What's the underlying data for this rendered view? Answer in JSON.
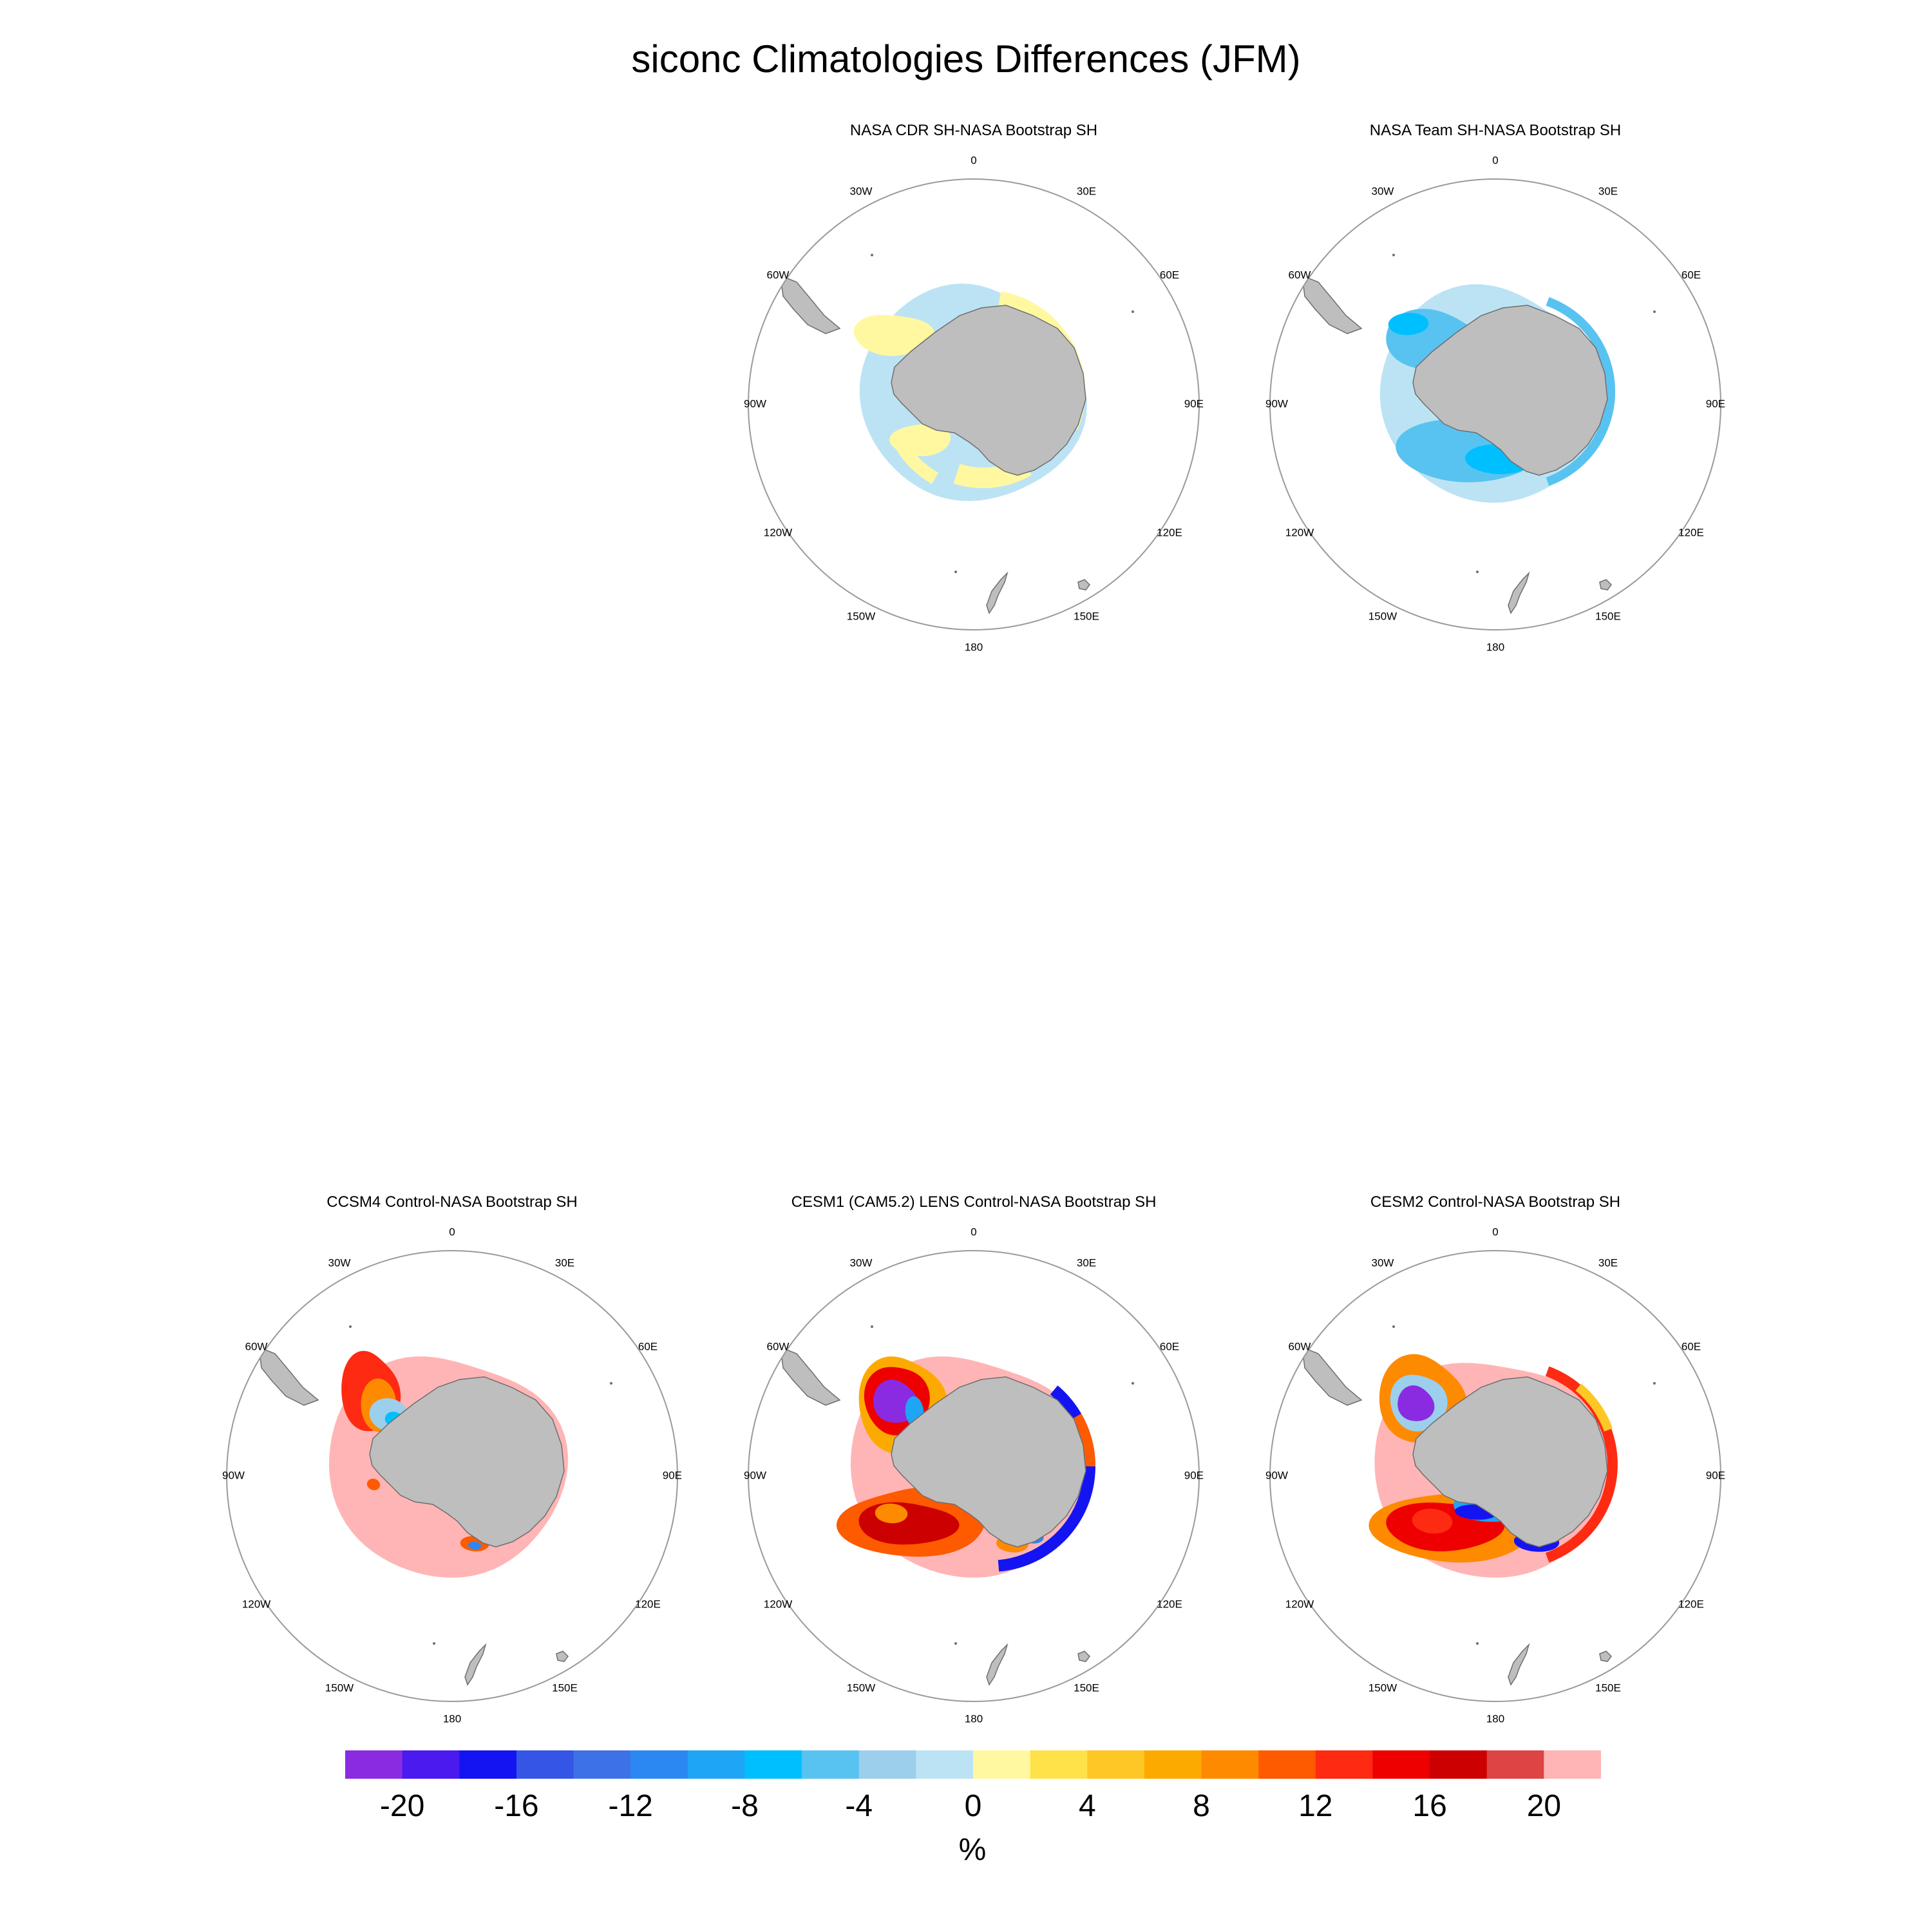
{
  "title": "siconc Climatologies Differences (JFM)",
  "panels": [
    {
      "id": "nasa-cdr",
      "title": "NASA CDR SH-NASA Bootstrap SH",
      "pattern": "cdr"
    },
    {
      "id": "nasa-team",
      "title": "NASA Team SH-NASA Bootstrap SH",
      "pattern": "team"
    },
    {
      "id": "ccsm4",
      "title": "CCSM4 Control-NASA Bootstrap SH",
      "pattern": "ccsm4"
    },
    {
      "id": "cesm1",
      "title": "CESM1 (CAM5.2) LENS Control-NASA Bootstrap SH",
      "pattern": "cesm1"
    },
    {
      "id": "cesm2",
      "title": "CESM2 Control-NASA Bootstrap SH",
      "pattern": "cesm2"
    }
  ],
  "longitude_labels": [
    "0",
    "30E",
    "60E",
    "90E",
    "120E",
    "150E",
    "180",
    "150W",
    "120W",
    "90W",
    "60W",
    "30W"
  ],
  "colorbar": {
    "unit": "%",
    "tick_labels": [
      "-20",
      "-16",
      "-12",
      "-8",
      "-4",
      "0",
      "4",
      "8",
      "12",
      "16",
      "20"
    ],
    "colors": [
      "#8a2be2",
      "#4a1aef",
      "#1414f2",
      "#3555e6",
      "#3d72e6",
      "#2b88f2",
      "#1ea5f5",
      "#00bfff",
      "#58c3f0",
      "#9ccfec",
      "#bce3f4",
      "#fff8a0",
      "#ffe14a",
      "#fdc826",
      "#fdaa00",
      "#fe8a00",
      "#fe5a00",
      "#fe2a12",
      "#ee0000",
      "#cc0000",
      "#dd4444",
      "#ffb5b5"
    ]
  },
  "colors": {
    "land": "#bebebe",
    "land_edge": "#6e6e6e",
    "circle": "#9a9a9a"
  }
}
